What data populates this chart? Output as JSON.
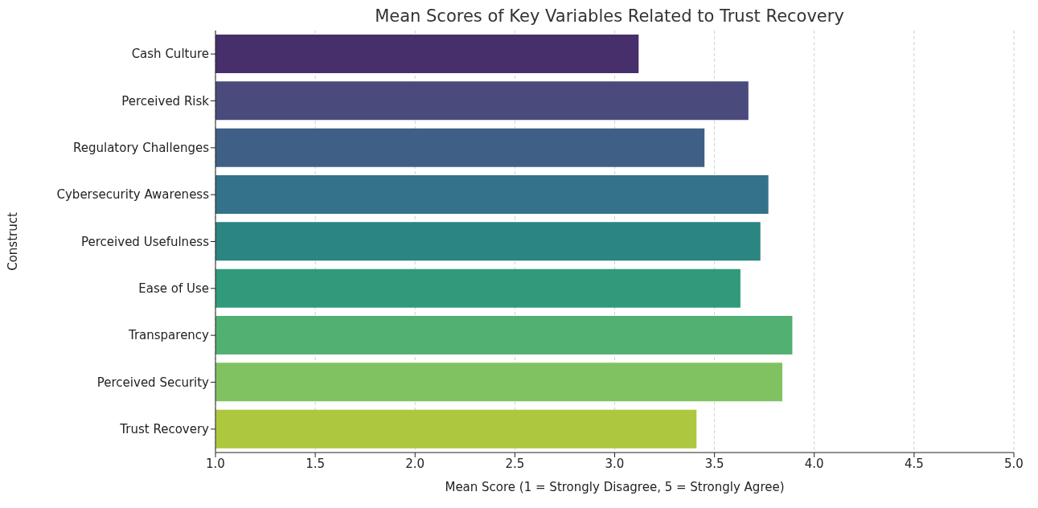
{
  "chart_data": {
    "type": "bar",
    "orientation": "horizontal",
    "title": "Mean Scores of Key Variables Related to Trust Recovery",
    "xlabel": "Mean Score (1 = Strongly Disagree, 5 = Strongly Agree)",
    "ylabel": "Construct",
    "categories": [
      "Cash Culture",
      "Perceived Risk",
      "Regulatory Challenges",
      "Cybersecurity Awareness",
      "Perceived Usefulness",
      "Ease of Use",
      "Transparency",
      "Perceived Security",
      "Trust Recovery"
    ],
    "values": [
      3.12,
      3.67,
      3.45,
      3.77,
      3.73,
      3.63,
      3.89,
      3.84,
      3.41
    ],
    "colors": [
      "#462f6b",
      "#4a4a7d",
      "#3f5f86",
      "#33728a",
      "#2b8580",
      "#309a7a",
      "#52b072",
      "#80c262",
      "#adc83e"
    ],
    "xlim": [
      1.0,
      5.0
    ],
    "xticks": [
      {
        "value": 1,
        "label": "1.0"
      },
      {
        "value": 1.5,
        "label": "1.5"
      },
      {
        "value": 2,
        "label": "2.0"
      },
      {
        "value": 2.5,
        "label": "2.5"
      },
      {
        "value": 3,
        "label": "3.0"
      },
      {
        "value": 3.5,
        "label": "3.5"
      },
      {
        "value": 4,
        "label": "4.0"
      },
      {
        "value": 4.5,
        "label": "4.5"
      },
      {
        "value": 5,
        "label": "5.0"
      }
    ],
    "grid": "x"
  }
}
